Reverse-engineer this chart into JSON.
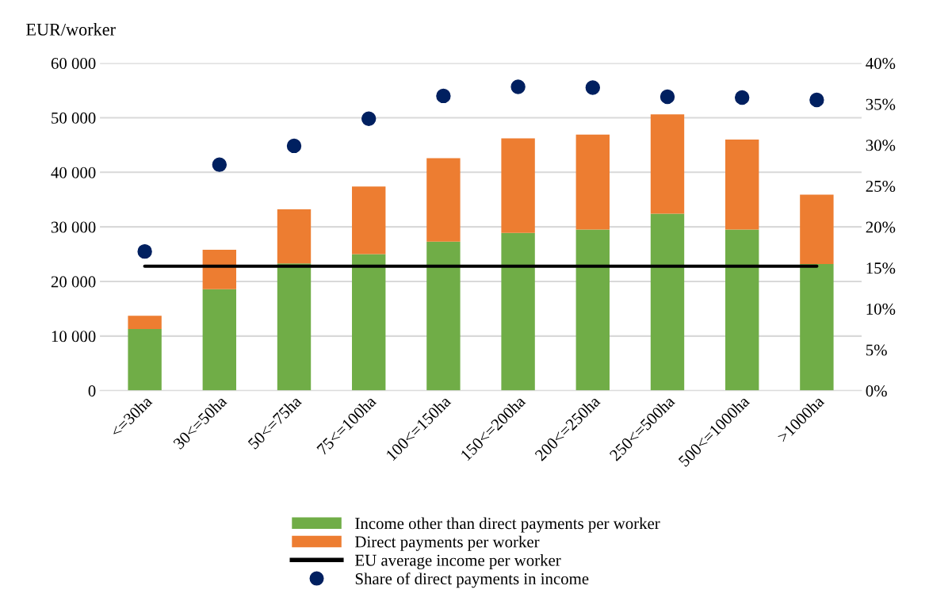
{
  "chart_data": {
    "type": "bar",
    "stacked": true,
    "ylabel": "EUR/worker",
    "categories": [
      "<=30ha",
      "30<=50ha",
      "50<=75ha",
      "75<=100ha",
      "100<=150ha",
      "150<=200ha",
      "200<=250ha",
      "250<=500ha",
      "500<=1000ha",
      ">1000ha"
    ],
    "series": [
      {
        "name": "Income other than direct payments per worker",
        "color": "#70ad47",
        "values": [
          11300,
          18600,
          23300,
          25000,
          27300,
          28900,
          29500,
          32400,
          29500,
          23200
        ]
      },
      {
        "name": "Direct payments per worker",
        "color": "#ed7d31",
        "values": [
          2400,
          7200,
          9900,
          12400,
          15300,
          17300,
          17400,
          18200,
          16500,
          12700
        ]
      },
      {
        "name": "EU average income per worker",
        "type": "line",
        "color": "#000000",
        "marker": "none",
        "values": [
          22800,
          22800,
          22800,
          22800,
          22800,
          22800,
          22800,
          22800,
          22800,
          22800
        ]
      },
      {
        "name": "Share of direct payments in income",
        "type": "scatter",
        "axis": "y2",
        "color": "#002060",
        "marker": "circle",
        "values": [
          17.0,
          27.6,
          29.9,
          33.2,
          36.0,
          37.1,
          37.0,
          35.9,
          35.8,
          35.5
        ]
      }
    ],
    "ylim": [
      0,
      60000
    ],
    "yticks": [
      {
        "value": 0,
        "label": "0"
      },
      {
        "value": 10000,
        "label": "10 000"
      },
      {
        "value": 20000,
        "label": "20 000"
      },
      {
        "value": 30000,
        "label": "30 000"
      },
      {
        "value": 40000,
        "label": "40 000"
      },
      {
        "value": 50000,
        "label": "50 000"
      },
      {
        "value": 60000,
        "label": "60 000"
      }
    ],
    "y2lim": [
      0,
      40
    ],
    "y2ticks": [
      {
        "value": 0,
        "label": "0%"
      },
      {
        "value": 5,
        "label": "5%"
      },
      {
        "value": 10,
        "label": "10%"
      },
      {
        "value": 15,
        "label": "15%"
      },
      {
        "value": 20,
        "label": "20%"
      },
      {
        "value": 25,
        "label": "25%"
      },
      {
        "value": 30,
        "label": "30%"
      },
      {
        "value": 35,
        "label": "35%"
      },
      {
        "value": 40,
        "label": "40%"
      }
    ],
    "grid": "y",
    "legend": "bottom"
  }
}
